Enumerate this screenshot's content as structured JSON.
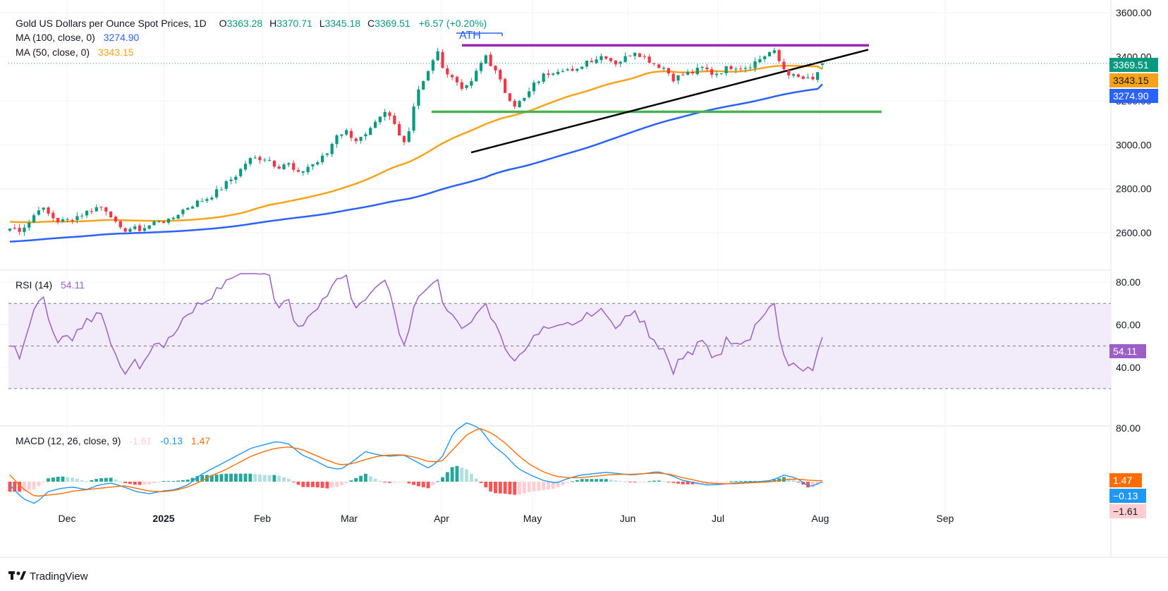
{
  "header": {
    "title": "Gold US Dollars per Ounce Spot Prices, 1D",
    "o_label": "O",
    "o_value": "3363.28",
    "h_label": "H",
    "h_value": "3370.71",
    "l_label": "L",
    "l_value": "3345.18",
    "c_label": "C",
    "c_value": "3369.51",
    "change": "+6.57 (+0.20%)"
  },
  "legend": {
    "ma100_label": "MA (100, close, 0)",
    "ma100_value": "3274.90",
    "ma50_label": "MA (50, close, 0)",
    "ma50_value": "3343.15",
    "rsi_label": "RSI (14)",
    "rsi_value": "54.11",
    "macd_label": "MACD (12, 26, close, 9)",
    "macd_hist_value": "-1.61",
    "macd_line_value": "-0.13",
    "macd_signal_value": "1.47"
  },
  "annotations": {
    "ath": "ATH"
  },
  "badges": {
    "price": "3369.51",
    "ma50": "3343.15",
    "ma100": "3274.90",
    "rsi": "54.11",
    "signal": "1.47",
    "macd": "−0.13",
    "hist": "−1.61"
  },
  "footer": {
    "brand": "TradingView"
  },
  "colors": {
    "up": "#089981",
    "down": "#f23645",
    "ma50": "#f7a21b",
    "ma100": "#2962ff",
    "rsi": "#9c5fc7",
    "rsi_band": "#f1ebfa",
    "macd": "#2196f3",
    "signal": "#ff6d00",
    "hist_up_strong": "#26a69a",
    "hist_up_weak": "#b2dfdb",
    "hist_down_strong": "#ff5252",
    "hist_down_weak": "#ffcdd2",
    "resistance": "#9c27b0",
    "support": "#4caf50",
    "trend": "#000000"
  },
  "chart_data": {
    "type": "candlestick",
    "x_labels": [
      "Dec",
      "2025",
      "Feb",
      "Mar",
      "Apr",
      "May",
      "Jun",
      "Jul",
      "Aug",
      "Sep"
    ],
    "price_axis": {
      "ticks": [
        "3600.00",
        "3400.00",
        "3200.00",
        "3000.00",
        "2800.00",
        "2600.00"
      ],
      "ylim": [
        2530,
        3600
      ]
    },
    "rsi_axis": {
      "ticks": [
        "80.00",
        "60.00",
        "40.00"
      ],
      "ylim": [
        27,
        84
      ],
      "band": [
        30,
        70
      ],
      "mid": 50
    },
    "macd_axis": {
      "ticks": [
        "80.00"
      ],
      "ylim": [
        -70,
        110
      ]
    },
    "last": {
      "open": 3363.28,
      "high": 3370.71,
      "low": 3345.18,
      "close": 3369.51
    },
    "ma100_last": 3274.9,
    "ma50_last": 3343.15,
    "rsi_last": 54.11,
    "macd_last": -0.13,
    "signal_last": 1.47,
    "hist_last": -1.61,
    "ath_level": 3500,
    "resistance": 3452,
    "support": 3150,
    "trendline": {
      "from": 2965,
      "to_at_aug_mid": 3432
    },
    "close_anchors": [
      2620,
      2615,
      2650,
      2720,
      2680,
      2650,
      2660,
      2680,
      2700,
      2720,
      2700,
      2610,
      2620,
      2615,
      2630,
      2660,
      2650,
      2690,
      2720,
      2740,
      2760,
      2790,
      2830,
      2870,
      2930,
      2940,
      2940,
      2900,
      2920,
      2860,
      2900,
      2920,
      2960,
      3050,
      3060,
      3020,
      3040,
      3100,
      3150,
      3080,
      3000,
      3240,
      3300,
      3430,
      3330,
      3290,
      3250,
      3320,
      3410,
      3330,
      3240,
      3180,
      3210,
      3280,
      3320,
      3340,
      3350,
      3320,
      3380,
      3390,
      3410,
      3370,
      3390,
      3430,
      3400,
      3370,
      3350,
      3300,
      3320,
      3330,
      3350,
      3320,
      3340,
      3360,
      3350,
      3370,
      3400,
      3430,
      3350,
      3310,
      3300,
      3290,
      3370
    ],
    "macd_anchors": [
      -5,
      -25,
      -33,
      -15,
      -10,
      -8,
      -12,
      -5,
      -2,
      -8,
      -15,
      -18,
      -14,
      -12,
      -5,
      10,
      20,
      30,
      40,
      50,
      55,
      60,
      56,
      40,
      32,
      22,
      18,
      30,
      45,
      40,
      38,
      40,
      30,
      20,
      35,
      75,
      88,
      80,
      55,
      40,
      20,
      10,
      2,
      -2,
      5,
      10,
      12,
      14,
      12,
      10,
      12,
      15,
      10,
      2,
      -2,
      -5,
      -4,
      -2,
      -1,
      0,
      2,
      10,
      5,
      -8,
      -0.13
    ],
    "signal_anchors": [
      10,
      -10,
      -22,
      -20,
      -18,
      -14,
      -12,
      -10,
      -8,
      -6,
      -10,
      -14,
      -15,
      -13,
      -8,
      0,
      10,
      18,
      28,
      38,
      45,
      50,
      52,
      48,
      40,
      32,
      25,
      27,
      33,
      38,
      40,
      40,
      36,
      30,
      30,
      50,
      70,
      80,
      72,
      58,
      40,
      25,
      15,
      8,
      6,
      6,
      8,
      10,
      11,
      11,
      12,
      13,
      11,
      6,
      2,
      -2,
      -3,
      -3,
      -2,
      -1,
      0,
      3,
      4,
      2,
      1.47
    ]
  }
}
